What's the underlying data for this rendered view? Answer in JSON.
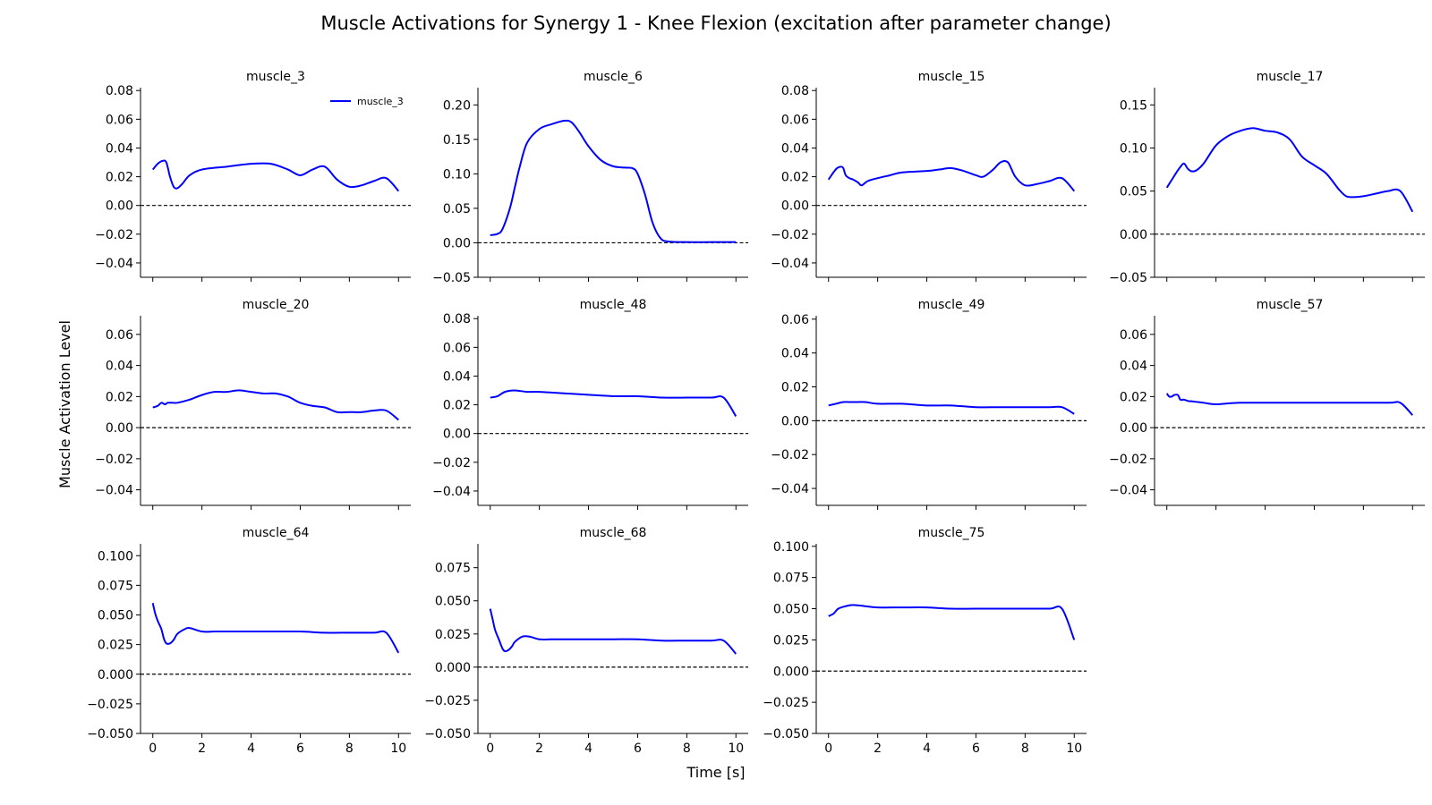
{
  "figure": {
    "title": "Muscle Activations for Synergy 1 - Knee Flexion (excitation after parameter change)",
    "xlabel": "Time [s]",
    "ylabel": "Muscle Activation Level"
  },
  "colors": {
    "series": "#0000ff",
    "axis": "#000000",
    "zero_line": "#000000"
  },
  "chart_data": [
    {
      "type": "line",
      "title": "muscle_3",
      "legend": "muscle_3",
      "legend_loc": "top-right",
      "xlim": [
        -0.5,
        10.5
      ],
      "ylim": [
        -0.05,
        0.082
      ],
      "xticks": [
        0,
        2,
        4,
        6,
        8,
        10
      ],
      "show_xticklabels": false,
      "yticks": [
        -0.04,
        -0.02,
        0.0,
        0.02,
        0.04,
        0.06,
        0.08
      ],
      "yticklabels": [
        "−0.04",
        "−0.02",
        "0.00",
        "0.02",
        "0.04",
        "0.06",
        "0.08"
      ],
      "x": [
        0,
        0.2,
        0.4,
        0.55,
        0.7,
        0.85,
        1.0,
        1.2,
        1.5,
        2.0,
        3.0,
        4.0,
        4.8,
        5.5,
        6.0,
        6.5,
        7.0,
        7.5,
        8.0,
        8.5,
        9.0,
        9.5,
        10.0
      ],
      "y": [
        0.025,
        0.029,
        0.031,
        0.03,
        0.02,
        0.013,
        0.012,
        0.015,
        0.021,
        0.025,
        0.027,
        0.029,
        0.029,
        0.025,
        0.021,
        0.025,
        0.027,
        0.018,
        0.013,
        0.014,
        0.017,
        0.019,
        0.01
      ]
    },
    {
      "type": "line",
      "title": "muscle_6",
      "xlim": [
        -0.5,
        10.5
      ],
      "ylim": [
        -0.05,
        0.225
      ],
      "xticks": [
        0,
        2,
        4,
        6,
        8,
        10
      ],
      "show_xticklabels": false,
      "yticks": [
        -0.05,
        0.0,
        0.05,
        0.1,
        0.15,
        0.2
      ],
      "yticklabels": [
        "−0.05",
        "0.00",
        "0.05",
        "0.10",
        "0.15",
        "0.20"
      ],
      "x": [
        0,
        0.3,
        0.5,
        0.8,
        1.0,
        1.2,
        1.5,
        2.0,
        2.5,
        3.0,
        3.3,
        3.6,
        4.0,
        4.5,
        5.0,
        5.5,
        5.8,
        6.0,
        6.3,
        6.6,
        6.9,
        7.2,
        8.0,
        9.0,
        10.0
      ],
      "y": [
        0.011,
        0.013,
        0.02,
        0.05,
        0.08,
        0.11,
        0.145,
        0.165,
        0.172,
        0.177,
        0.175,
        0.162,
        0.14,
        0.12,
        0.111,
        0.109,
        0.108,
        0.1,
        0.07,
        0.03,
        0.008,
        0.002,
        0.001,
        0.001,
        0.001
      ]
    },
    {
      "type": "line",
      "title": "muscle_15",
      "xlim": [
        -0.5,
        10.5
      ],
      "ylim": [
        -0.05,
        0.082
      ],
      "xticks": [
        0,
        2,
        4,
        6,
        8,
        10
      ],
      "show_xticklabels": false,
      "yticks": [
        -0.04,
        -0.02,
        0.0,
        0.02,
        0.04,
        0.06,
        0.08
      ],
      "yticklabels": [
        "−0.04",
        "−0.02",
        "0.00",
        "0.02",
        "0.04",
        "0.06",
        "0.08"
      ],
      "x": [
        0,
        0.2,
        0.35,
        0.5,
        0.6,
        0.7,
        0.85,
        1.0,
        1.2,
        1.35,
        1.6,
        2.0,
        2.5,
        3.0,
        4.0,
        4.5,
        5.0,
        5.5,
        6.0,
        6.3,
        6.7,
        7.0,
        7.3,
        7.6,
        8.0,
        8.5,
        9.0,
        9.5,
        10.0
      ],
      "y": [
        0.018,
        0.023,
        0.026,
        0.027,
        0.026,
        0.021,
        0.019,
        0.018,
        0.016,
        0.014,
        0.017,
        0.019,
        0.021,
        0.023,
        0.024,
        0.025,
        0.026,
        0.024,
        0.021,
        0.02,
        0.025,
        0.03,
        0.03,
        0.02,
        0.014,
        0.015,
        0.017,
        0.019,
        0.01
      ]
    },
    {
      "type": "line",
      "title": "muscle_17",
      "xlim": [
        -0.5,
        10.5
      ],
      "ylim": [
        -0.05,
        0.17
      ],
      "xticks": [
        0,
        2,
        4,
        6,
        8,
        10
      ],
      "show_xticklabels": false,
      "yticks": [
        -0.05,
        0.0,
        0.05,
        0.1,
        0.15
      ],
      "yticklabels": [
        "−0.05",
        "0.00",
        "0.05",
        "0.10",
        "0.15"
      ],
      "x": [
        0,
        0.2,
        0.4,
        0.55,
        0.7,
        0.85,
        1.0,
        1.2,
        1.5,
        2.0,
        2.5,
        3.0,
        3.5,
        4.0,
        4.5,
        5.0,
        5.5,
        6.0,
        6.5,
        7.0,
        7.3,
        7.6,
        8.0,
        8.5,
        9.0,
        9.5,
        10.0
      ],
      "y": [
        0.054,
        0.063,
        0.072,
        0.078,
        0.082,
        0.076,
        0.073,
        0.074,
        0.082,
        0.103,
        0.114,
        0.12,
        0.123,
        0.12,
        0.118,
        0.11,
        0.09,
        0.08,
        0.07,
        0.052,
        0.044,
        0.043,
        0.044,
        0.047,
        0.05,
        0.05,
        0.026
      ]
    },
    {
      "type": "line",
      "title": "muscle_20",
      "xlim": [
        -0.5,
        10.5
      ],
      "ylim": [
        -0.05,
        0.072
      ],
      "xticks": [
        0,
        2,
        4,
        6,
        8,
        10
      ],
      "show_xticklabels": false,
      "yticks": [
        -0.04,
        -0.02,
        0.0,
        0.02,
        0.04,
        0.06
      ],
      "yticklabels": [
        "−0.04",
        "−0.02",
        "0.00",
        "0.02",
        "0.04",
        "0.06"
      ],
      "x": [
        0,
        0.2,
        0.35,
        0.5,
        0.6,
        0.8,
        1.0,
        1.5,
        2.0,
        2.5,
        3.0,
        3.5,
        4.0,
        4.5,
        5.0,
        5.5,
        6.0,
        6.5,
        7.0,
        7.5,
        8.0,
        8.5,
        9.0,
        9.5,
        10.0
      ],
      "y": [
        0.013,
        0.014,
        0.016,
        0.015,
        0.016,
        0.016,
        0.016,
        0.018,
        0.021,
        0.023,
        0.023,
        0.024,
        0.023,
        0.022,
        0.022,
        0.02,
        0.016,
        0.014,
        0.013,
        0.01,
        0.01,
        0.01,
        0.011,
        0.011,
        0.005
      ]
    },
    {
      "type": "line",
      "title": "muscle_48",
      "xlim": [
        -0.5,
        10.5
      ],
      "ylim": [
        -0.05,
        0.082
      ],
      "xticks": [
        0,
        2,
        4,
        6,
        8,
        10
      ],
      "show_xticklabels": false,
      "yticks": [
        -0.04,
        -0.02,
        0.0,
        0.02,
        0.04,
        0.06,
        0.08
      ],
      "yticklabels": [
        "−0.04",
        "−0.02",
        "0.00",
        "0.02",
        "0.04",
        "0.06",
        "0.08"
      ],
      "x": [
        0,
        0.3,
        0.6,
        1.0,
        1.5,
        2.0,
        3.0,
        4.0,
        5.0,
        6.0,
        7.0,
        8.0,
        9.0,
        9.5,
        10.0
      ],
      "y": [
        0.025,
        0.026,
        0.029,
        0.03,
        0.029,
        0.029,
        0.028,
        0.027,
        0.026,
        0.026,
        0.025,
        0.025,
        0.025,
        0.025,
        0.012
      ]
    },
    {
      "type": "line",
      "title": "muscle_49",
      "xlim": [
        -0.5,
        10.5
      ],
      "ylim": [
        -0.05,
        0.062
      ],
      "xticks": [
        0,
        2,
        4,
        6,
        8,
        10
      ],
      "show_xticklabels": false,
      "yticks": [
        -0.04,
        -0.02,
        0.0,
        0.02,
        0.04,
        0.06
      ],
      "yticklabels": [
        "−0.04",
        "−0.02",
        "0.00",
        "0.02",
        "0.04",
        "0.06"
      ],
      "x": [
        0,
        0.3,
        0.6,
        1.0,
        1.5,
        2.0,
        3.0,
        4.0,
        5.0,
        6.0,
        7.0,
        8.0,
        9.0,
        9.5,
        10.0
      ],
      "y": [
        0.009,
        0.01,
        0.011,
        0.011,
        0.011,
        0.01,
        0.01,
        0.009,
        0.009,
        0.008,
        0.008,
        0.008,
        0.008,
        0.008,
        0.004
      ]
    },
    {
      "type": "line",
      "title": "muscle_57",
      "xlim": [
        -0.5,
        10.5
      ],
      "ylim": [
        -0.05,
        0.072
      ],
      "xticks": [
        0,
        2,
        4,
        6,
        8,
        10
      ],
      "show_xticklabels": false,
      "yticks": [
        -0.04,
        -0.02,
        0.0,
        0.02,
        0.04,
        0.06
      ],
      "yticklabels": [
        "−0.04",
        "−0.02",
        "0.00",
        "0.02",
        "0.04",
        "0.06"
      ],
      "x": [
        0,
        0.1,
        0.2,
        0.3,
        0.45,
        0.55,
        0.7,
        0.9,
        1.0,
        1.5,
        2.0,
        3.0,
        5.0,
        7.0,
        9.0,
        9.5,
        10.0
      ],
      "y": [
        0.022,
        0.02,
        0.02,
        0.021,
        0.021,
        0.018,
        0.018,
        0.017,
        0.017,
        0.016,
        0.015,
        0.016,
        0.016,
        0.016,
        0.016,
        0.016,
        0.008
      ]
    },
    {
      "type": "line",
      "title": "muscle_64",
      "xlim": [
        -0.5,
        10.5
      ],
      "ylim": [
        -0.05,
        0.11
      ],
      "xticks": [
        0,
        2,
        4,
        6,
        8,
        10
      ],
      "show_xticklabels": true,
      "yticks": [
        -0.05,
        -0.025,
        0.0,
        0.025,
        0.05,
        0.075,
        0.1
      ],
      "yticklabels": [
        "−0.050",
        "−0.025",
        "0.000",
        "0.025",
        "0.050",
        "0.075",
        "0.100"
      ],
      "x": [
        0,
        0.1,
        0.2,
        0.35,
        0.45,
        0.55,
        0.7,
        0.85,
        1.0,
        1.3,
        1.5,
        2.0,
        2.5,
        3.0,
        4.0,
        5.0,
        6.0,
        7.0,
        8.0,
        9.0,
        9.5,
        10.0
      ],
      "y": [
        0.06,
        0.051,
        0.045,
        0.038,
        0.03,
        0.026,
        0.026,
        0.029,
        0.034,
        0.038,
        0.039,
        0.036,
        0.036,
        0.036,
        0.036,
        0.036,
        0.036,
        0.035,
        0.035,
        0.035,
        0.035,
        0.018
      ]
    },
    {
      "type": "line",
      "title": "muscle_68",
      "xlim": [
        -0.5,
        10.5
      ],
      "ylim": [
        -0.05,
        0.093
      ],
      "xticks": [
        0,
        2,
        4,
        6,
        8,
        10
      ],
      "show_xticklabels": true,
      "yticks": [
        -0.05,
        -0.025,
        0.0,
        0.025,
        0.05,
        0.075
      ],
      "yticklabels": [
        "−0.050",
        "−0.025",
        "0.000",
        "0.025",
        "0.050",
        "0.075"
      ],
      "x": [
        0,
        0.1,
        0.2,
        0.35,
        0.5,
        0.6,
        0.75,
        0.9,
        1.0,
        1.3,
        1.6,
        2.0,
        2.5,
        3.0,
        4.0,
        5.0,
        6.0,
        7.0,
        8.0,
        9.0,
        9.5,
        10.0
      ],
      "y": [
        0.044,
        0.036,
        0.028,
        0.021,
        0.014,
        0.012,
        0.013,
        0.016,
        0.019,
        0.023,
        0.023,
        0.021,
        0.021,
        0.021,
        0.021,
        0.021,
        0.021,
        0.02,
        0.02,
        0.02,
        0.02,
        0.01
      ]
    },
    {
      "type": "line",
      "title": "muscle_75",
      "xlim": [
        -0.5,
        10.5
      ],
      "ylim": [
        -0.05,
        0.102
      ],
      "xticks": [
        0,
        2,
        4,
        6,
        8,
        10
      ],
      "show_xticklabels": true,
      "yticks": [
        -0.05,
        -0.025,
        0.0,
        0.025,
        0.05,
        0.075,
        0.1
      ],
      "yticklabels": [
        "−0.050",
        "−0.025",
        "0.000",
        "0.025",
        "0.050",
        "0.075",
        "0.100"
      ],
      "x": [
        0,
        0.2,
        0.4,
        0.7,
        1.0,
        1.5,
        2.0,
        3.0,
        4.0,
        5.0,
        6.0,
        7.0,
        8.0,
        9.0,
        9.5,
        10.0
      ],
      "y": [
        0.044,
        0.046,
        0.05,
        0.052,
        0.053,
        0.052,
        0.051,
        0.051,
        0.051,
        0.05,
        0.05,
        0.05,
        0.05,
        0.05,
        0.05,
        0.025
      ]
    }
  ]
}
